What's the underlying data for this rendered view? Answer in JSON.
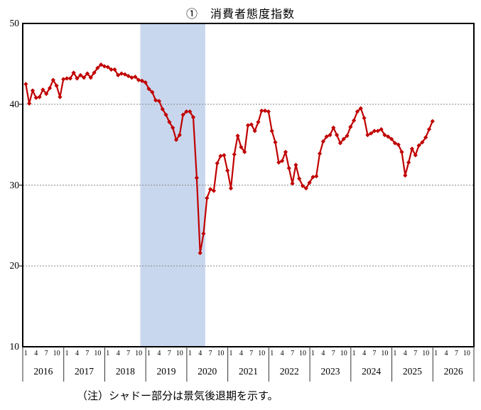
{
  "title": "①　消費者態度指数",
  "note": "（注）シャドー部分は景気後退期を示す。",
  "y_axis": {
    "min": 10,
    "max": 50,
    "tick_labels": [
      "50",
      "40",
      "30",
      "20",
      "10"
    ]
  },
  "x_axis": {
    "years": [
      "2016",
      "2017",
      "2018",
      "2019",
      "2020",
      "2021",
      "2022",
      "2023",
      "2024",
      "2025",
      "2026"
    ],
    "month_tick_labels": [
      "1",
      "4",
      "7",
      "10"
    ]
  },
  "recession_band": {
    "label": "景気後退期（シャドー部分）",
    "start": "2018-11",
    "end": "2020-05",
    "color": "#c9d7ee"
  },
  "chart_data": {
    "type": "line",
    "title": "①　消費者態度指数",
    "frequency": "monthly",
    "start": "2016-01",
    "end": "2025-12",
    "ylim": [
      10,
      50
    ],
    "grid": "horizontal-dotted",
    "legend": "none",
    "line_color": "#c00000",
    "marker": "diamond",
    "series": [
      {
        "name": "消費者態度指数",
        "values": [
          42.5,
          40.1,
          41.7,
          40.8,
          40.9,
          41.8,
          41.3,
          42.0,
          43.0,
          42.3,
          40.9,
          43.1,
          43.2,
          43.2,
          43.9,
          43.2,
          43.6,
          43.3,
          43.8,
          43.3,
          43.9,
          44.5,
          44.9,
          44.7,
          44.6,
          44.3,
          44.3,
          43.6,
          43.8,
          43.7,
          43.5,
          43.3,
          43.4,
          43.0,
          42.9,
          42.7,
          41.9,
          41.5,
          40.5,
          40.4,
          39.4,
          38.7,
          37.8,
          37.1,
          35.6,
          36.2,
          38.7,
          39.1,
          39.1,
          38.4,
          30.9,
          21.6,
          24.0,
          28.4,
          29.5,
          29.3,
          32.7,
          33.6,
          33.7,
          31.8,
          29.6,
          33.8,
          36.1,
          34.7,
          34.1,
          37.4,
          37.5,
          36.7,
          37.8,
          39.2,
          39.2,
          39.1,
          36.7,
          35.3,
          32.8,
          33.0,
          34.1,
          32.1,
          30.2,
          32.5,
          30.8,
          29.9,
          29.6,
          30.3,
          31.0,
          31.1,
          33.9,
          35.4,
          36.0,
          36.2,
          37.1,
          36.2,
          35.2,
          35.7,
          36.1,
          37.2,
          38.0,
          39.1,
          39.5,
          38.3,
          36.2,
          36.4,
          36.7,
          36.7,
          36.9,
          36.2,
          36.0,
          35.7,
          35.2,
          35.0,
          34.1,
          31.2,
          32.8,
          34.5,
          33.7,
          34.9,
          35.3,
          35.9,
          36.9,
          37.9
        ]
      }
    ]
  }
}
